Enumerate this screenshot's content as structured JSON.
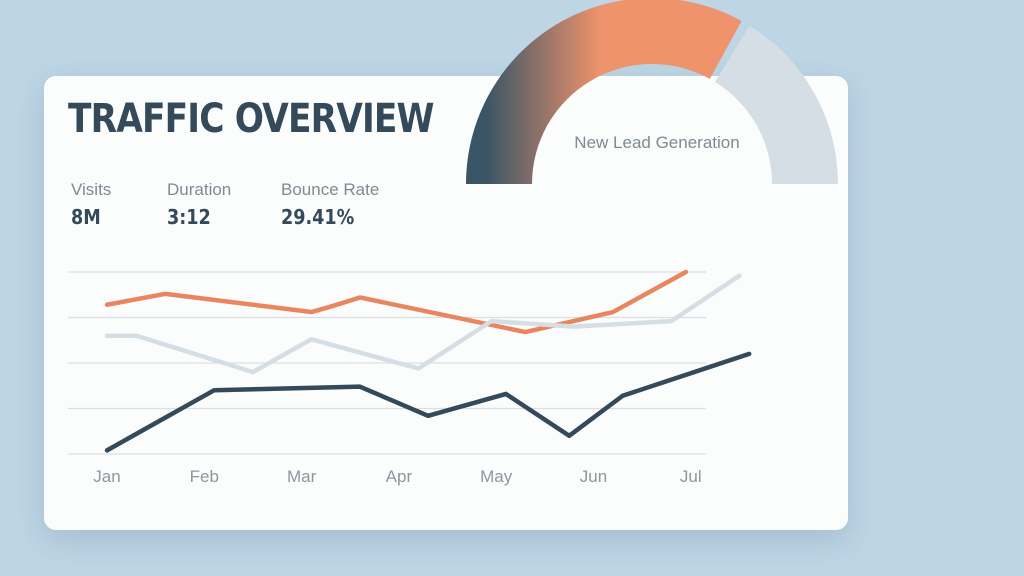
{
  "title": "TRAFFIC OVERVIEW",
  "metrics": [
    {
      "label": "Visits",
      "value": "8M"
    },
    {
      "label": "Duration",
      "value": "3:12"
    },
    {
      "label": "Bounce Rate",
      "value": "29.41%"
    }
  ],
  "gauge": {
    "label": "New Lead Generation",
    "progress_fraction": 0.66,
    "colors": {
      "dark": "#3a5566",
      "accent": "#ee936b",
      "track": "#d6dee5"
    }
  },
  "chart_data": {
    "type": "line",
    "categories": [
      "Jan",
      "Feb",
      "Mar",
      "Apr",
      "May",
      "Jun",
      "Jul"
    ],
    "ylim": [
      0,
      100
    ],
    "grid": true,
    "series": [
      {
        "color": "#e8865f",
        "points": [
          [
            0,
            82
          ],
          [
            0.6,
            88
          ],
          [
            2.1,
            78
          ],
          [
            2.3,
            81
          ],
          [
            2.6,
            86
          ],
          [
            4.3,
            67
          ],
          [
            5.2,
            78
          ],
          [
            5.95,
            100
          ]
        ]
      },
      {
        "color": "#d5dee4",
        "points": [
          [
            0,
            65
          ],
          [
            0.3,
            65
          ],
          [
            1.5,
            45
          ],
          [
            2.1,
            63
          ],
          [
            3.2,
            47
          ],
          [
            3.95,
            73
          ],
          [
            4.8,
            70
          ],
          [
            5.8,
            73
          ],
          [
            6.5,
            98
          ]
        ]
      },
      {
        "color": "#34495a",
        "points": [
          [
            0,
            2
          ],
          [
            1.1,
            35
          ],
          [
            2.6,
            37
          ],
          [
            3.3,
            21
          ],
          [
            4.1,
            33
          ],
          [
            4.75,
            10
          ],
          [
            5.3,
            32
          ],
          [
            6.6,
            55
          ]
        ]
      }
    ]
  }
}
